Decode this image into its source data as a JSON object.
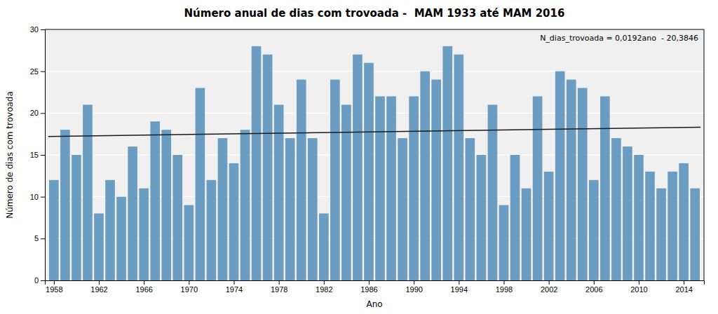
{
  "chart_data": {
    "type": "bar",
    "title": "Número anual de dias com trovoada -  MAM 1933 até MAM 2016",
    "xlabel": "Ano",
    "ylabel": "Número de dias com trovoada",
    "x": [
      1958,
      1959,
      1960,
      1961,
      1962,
      1963,
      1964,
      1965,
      1966,
      1967,
      1968,
      1969,
      1970,
      1971,
      1972,
      1973,
      1974,
      1975,
      1976,
      1977,
      1978,
      1979,
      1980,
      1981,
      1982,
      1983,
      1984,
      1985,
      1986,
      1987,
      1988,
      1989,
      1990,
      1991,
      1992,
      1993,
      1994,
      1995,
      1996,
      1997,
      1998,
      1999,
      2000,
      2001,
      2002,
      2003,
      2004,
      2005,
      2006,
      2007,
      2008,
      2009,
      2010,
      2011,
      2012,
      2013,
      2014,
      2015
    ],
    "series": [
      {
        "type": "bar",
        "color": "#6B9DC2",
        "values": [
          12,
          18,
          15,
          21,
          8,
          12,
          10,
          16,
          11,
          19,
          18,
          15,
          9,
          23,
          12,
          17,
          14,
          18,
          28,
          27,
          21,
          17,
          24,
          17,
          8,
          24,
          21,
          27,
          26,
          22,
          22,
          17,
          22,
          25,
          24,
          28,
          27,
          17,
          15,
          21,
          9,
          15,
          11,
          22,
          13,
          25,
          24,
          23,
          12,
          22,
          17,
          16,
          15,
          13,
          11,
          13,
          14,
          11
        ]
      },
      {
        "type": "line",
        "color": "#1a1a1a",
        "x": [
          1957.5,
          2015.5
        ],
        "values": [
          17.1994,
          18.313
        ]
      }
    ],
    "annotations": [
      "N_dias_trovoada = 0,0192ano  - 20,3846"
    ],
    "xlim": [
      1957.2,
      2015.8
    ],
    "xticks": [
      1958,
      1962,
      1966,
      1970,
      1974,
      1978,
      1982,
      1986,
      1990,
      1994,
      1998,
      2002,
      2006,
      2010,
      2014
    ],
    "ylim": [
      0,
      30
    ],
    "yticks": [
      0,
      5,
      10,
      15,
      20,
      25,
      30
    ],
    "grid": true
  }
}
